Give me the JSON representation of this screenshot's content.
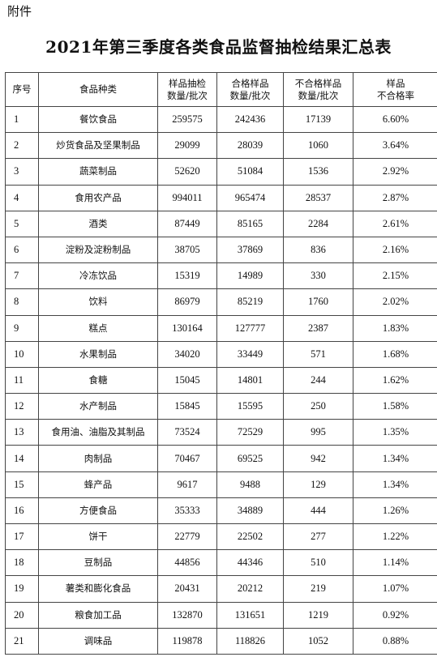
{
  "attachment_label": "附件",
  "title": "2021年第三季度各类食品监督抽检结果汇总表",
  "table": {
    "headers": [
      {
        "line1": "序号",
        "line2": ""
      },
      {
        "line1": "食品种类",
        "line2": ""
      },
      {
        "line1": "样品抽检",
        "line2": "数量/批次"
      },
      {
        "line1": "合格样品",
        "line2": "数量/批次"
      },
      {
        "line1": "不合格样品",
        "line2": "数量/批次"
      },
      {
        "line1": "样品",
        "line2": "不合格率"
      }
    ],
    "rows": [
      [
        "1",
        "餐饮食品",
        "259575",
        "242436",
        "17139",
        "6.60%"
      ],
      [
        "2",
        "炒货食品及坚果制品",
        "29099",
        "28039",
        "1060",
        "3.64%"
      ],
      [
        "3",
        "蔬菜制品",
        "52620",
        "51084",
        "1536",
        "2.92%"
      ],
      [
        "4",
        "食用农产品",
        "994011",
        "965474",
        "28537",
        "2.87%"
      ],
      [
        "5",
        "酒类",
        "87449",
        "85165",
        "2284",
        "2.61%"
      ],
      [
        "6",
        "淀粉及淀粉制品",
        "38705",
        "37869",
        "836",
        "2.16%"
      ],
      [
        "7",
        "冷冻饮品",
        "15319",
        "14989",
        "330",
        "2.15%"
      ],
      [
        "8",
        "饮料",
        "86979",
        "85219",
        "1760",
        "2.02%"
      ],
      [
        "9",
        "糕点",
        "130164",
        "127777",
        "2387",
        "1.83%"
      ],
      [
        "10",
        "水果制品",
        "34020",
        "33449",
        "571",
        "1.68%"
      ],
      [
        "11",
        "食糖",
        "15045",
        "14801",
        "244",
        "1.62%"
      ],
      [
        "12",
        "水产制品",
        "15845",
        "15595",
        "250",
        "1.58%"
      ],
      [
        "13",
        "食用油、油脂及其制品",
        "73524",
        "72529",
        "995",
        "1.35%"
      ],
      [
        "14",
        "肉制品",
        "70467",
        "69525",
        "942",
        "1.34%"
      ],
      [
        "15",
        "蜂产品",
        "9617",
        "9488",
        "129",
        "1.34%"
      ],
      [
        "16",
        "方便食品",
        "35333",
        "34889",
        "444",
        "1.26%"
      ],
      [
        "17",
        "饼干",
        "22779",
        "22502",
        "277",
        "1.22%"
      ],
      [
        "18",
        "豆制品",
        "44856",
        "44346",
        "510",
        "1.14%"
      ],
      [
        "19",
        "薯类和膨化食品",
        "20431",
        "20212",
        "219",
        "1.07%"
      ],
      [
        "20",
        "粮食加工品",
        "132870",
        "131651",
        "1219",
        "0.92%"
      ],
      [
        "21",
        "调味品",
        "119878",
        "118826",
        "1052",
        "0.88%"
      ]
    ]
  }
}
